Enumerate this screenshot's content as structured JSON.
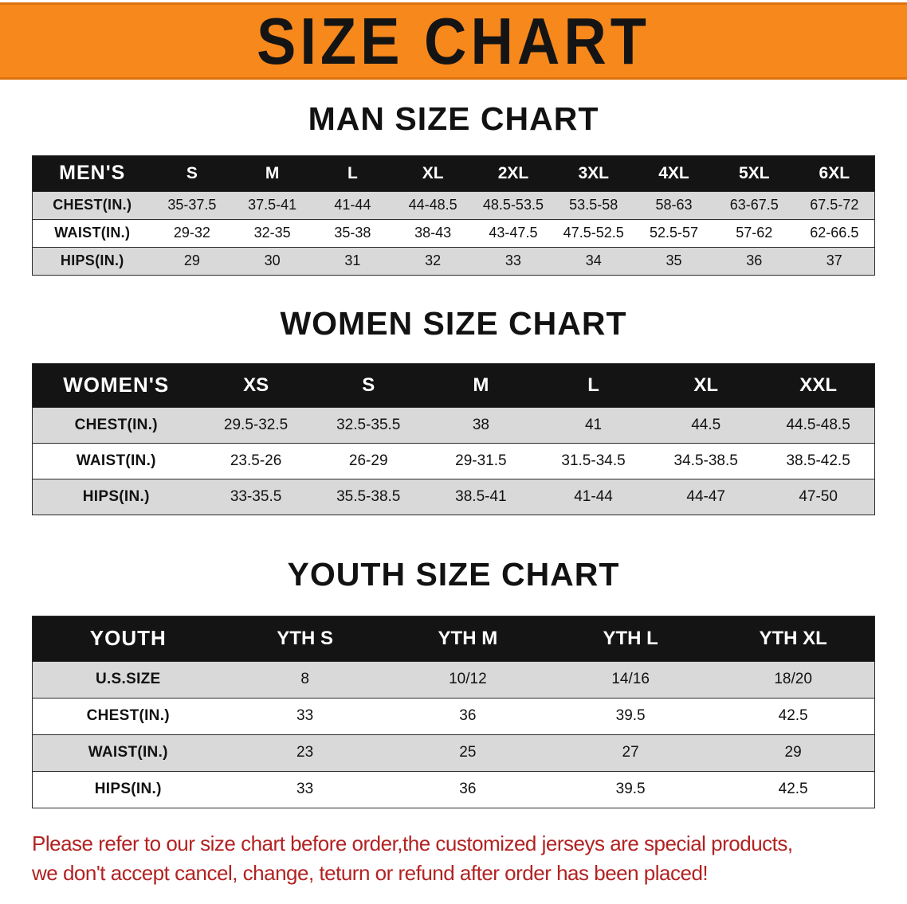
{
  "banner": {
    "title": "SIZE CHART"
  },
  "sections": [
    {
      "heading": "MAN SIZE CHART",
      "table": {
        "header": [
          "MEN'S",
          "S",
          "M",
          "L",
          "XL",
          "2XL",
          "3XL",
          "4XL",
          "5XL",
          "6XL"
        ],
        "rows": [
          [
            "CHEST(IN.)",
            "35-37.5",
            "37.5-41",
            "41-44",
            "44-48.5",
            "48.5-53.5",
            "53.5-58",
            "58-63",
            "63-67.5",
            "67.5-72"
          ],
          [
            "WAIST(IN.)",
            "29-32",
            "32-35",
            "35-38",
            "38-43",
            "43-47.5",
            "47.5-52.5",
            "52.5-57",
            "57-62",
            "62-66.5"
          ],
          [
            "HIPS(IN.)",
            "29",
            "30",
            "31",
            "32",
            "33",
            "34",
            "35",
            "36",
            "37"
          ]
        ]
      }
    },
    {
      "heading": "WOMEN SIZE CHART",
      "table": {
        "header": [
          "WOMEN'S",
          "XS",
          "S",
          "M",
          "L",
          "XL",
          "XXL"
        ],
        "rows": [
          [
            "CHEST(IN.)",
            "29.5-32.5",
            "32.5-35.5",
            "38",
            "41",
            "44.5",
            "44.5-48.5"
          ],
          [
            "WAIST(IN.)",
            "23.5-26",
            "26-29",
            "29-31.5",
            "31.5-34.5",
            "34.5-38.5",
            "38.5-42.5"
          ],
          [
            "HIPS(IN.)",
            "33-35.5",
            "35.5-38.5",
            "38.5-41",
            "41-44",
            "44-47",
            "47-50"
          ]
        ]
      }
    },
    {
      "heading": "YOUTH SIZE CHART",
      "table": {
        "header": [
          "YOUTH",
          "YTH S",
          "YTH M",
          "YTH L",
          "YTH XL"
        ],
        "rows": [
          [
            "U.S.SIZE",
            "8",
            "10/12",
            "14/16",
            "18/20"
          ],
          [
            "CHEST(IN.)",
            "33",
            "36",
            "39.5",
            "42.5"
          ],
          [
            "WAIST(IN.)",
            "23",
            "25",
            "27",
            "29"
          ],
          [
            "HIPS(IN.)",
            "33",
            "36",
            "39.5",
            "42.5"
          ]
        ]
      }
    }
  ],
  "note": {
    "line1": "Please refer to our size chart before order,the customized jerseys are special products,",
    "line2": "we don't accept cancel, change, teturn or refund after order has been placed!"
  },
  "colors": {
    "banner_orange": "#F6881C",
    "table_header_black": "#141414",
    "stripe_gray": "#D9D9D9",
    "note_red": "#B22222"
  }
}
